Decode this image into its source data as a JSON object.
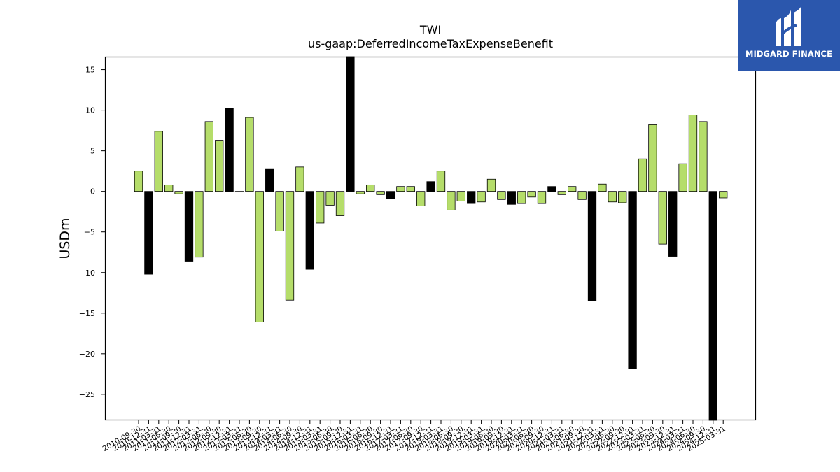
{
  "chart_data": {
    "type": "bar",
    "title": "TWI",
    "subtitle": "us-gaap:DeferredIncomeTaxExpenseBenefit",
    "xlabel": "",
    "ylabel": "USDm",
    "ylim": [
      -28.2,
      16.6
    ],
    "yticks": [
      15,
      10,
      5,
      0,
      -5,
      -10,
      -15,
      -20,
      -25
    ],
    "ytick_labels": [
      "15",
      "10",
      "5",
      "0",
      "−5",
      "−10",
      "−15",
      "−20",
      "−25"
    ],
    "grid": false,
    "legend": "none",
    "colors": {
      "positive_change": "#b5dd6a",
      "negative_change": "#000000",
      "edge": "#000000"
    },
    "categories": [
      "2010-09-30",
      "2010-12-31",
      "2011-03-31",
      "2011-06-30",
      "2011-09-30",
      "2011-12-31",
      "2012-03-31",
      "2012-06-30",
      "2012-09-30",
      "2012-12-31",
      "2013-03-31",
      "2013-06-30",
      "2013-09-30",
      "2013-12-31",
      "2014-03-31",
      "2014-06-30",
      "2014-09-30",
      "2014-12-31",
      "2015-03-31",
      "2015-06-30",
      "2015-09-30",
      "2015-12-31",
      "2016-03-31",
      "2016-06-30",
      "2016-09-30",
      "2016-12-31",
      "2017-03-31",
      "2017-06-30",
      "2017-09-30",
      "2017-12-31",
      "2018-03-31",
      "2018-06-30",
      "2018-09-30",
      "2018-12-31",
      "2019-03-31",
      "2019-06-30",
      "2019-09-30",
      "2019-12-31",
      "2020-03-31",
      "2020-06-30",
      "2020-09-30",
      "2020-12-31",
      "2021-03-31",
      "2021-06-30",
      "2021-09-30",
      "2021-12-31",
      "2022-03-31",
      "2022-06-30",
      "2022-09-30",
      "2022-12-31",
      "2023-03-31",
      "2023-06-30",
      "2023-09-30",
      "2023-12-31",
      "2024-03-31",
      "2024-06-30",
      "2024-09-30",
      "2024-12-31",
      "2025-03-31"
    ],
    "values": [
      2.5,
      -10.2,
      7.4,
      0.8,
      -0.3,
      -8.6,
      -8.1,
      8.6,
      6.3,
      10.2,
      0.0,
      9.1,
      -16.1,
      2.8,
      -4.9,
      -13.4,
      3.0,
      -9.6,
      -3.9,
      -1.7,
      -3.0,
      16.6,
      -0.3,
      0.8,
      -0.4,
      -0.9,
      0.6,
      0.6,
      -1.8,
      1.2,
      2.5,
      -2.3,
      -1.2,
      -1.5,
      -1.3,
      1.5,
      -1.0,
      -1.6,
      -1.5,
      -0.7,
      -1.5,
      0.6,
      -0.4,
      0.6,
      -1.0,
      -13.5,
      0.9,
      -1.3,
      -1.4,
      -21.8,
      4.0,
      8.2,
      -6.5,
      -8.0,
      3.4,
      9.4,
      8.6,
      -28.2,
      -0.8
    ],
    "bar_colors": [
      "#b5dd6a",
      "#000000",
      "#b5dd6a",
      "#b5dd6a",
      "#b5dd6a",
      "#000000",
      "#b5dd6a",
      "#b5dd6a",
      "#b5dd6a",
      "#000000",
      "#b5dd6a",
      "#b5dd6a",
      "#b5dd6a",
      "#000000",
      "#b5dd6a",
      "#b5dd6a",
      "#b5dd6a",
      "#000000",
      "#b5dd6a",
      "#b5dd6a",
      "#b5dd6a",
      "#000000",
      "#b5dd6a",
      "#b5dd6a",
      "#b5dd6a",
      "#000000",
      "#b5dd6a",
      "#b5dd6a",
      "#b5dd6a",
      "#000000",
      "#b5dd6a",
      "#b5dd6a",
      "#b5dd6a",
      "#000000",
      "#b5dd6a",
      "#b5dd6a",
      "#b5dd6a",
      "#000000",
      "#b5dd6a",
      "#b5dd6a",
      "#b5dd6a",
      "#000000",
      "#b5dd6a",
      "#b5dd6a",
      "#b5dd6a",
      "#000000",
      "#b5dd6a",
      "#b5dd6a",
      "#b5dd6a",
      "#000000",
      "#b5dd6a",
      "#b5dd6a",
      "#b5dd6a",
      "#000000",
      "#b5dd6a",
      "#b5dd6a",
      "#b5dd6a",
      "#000000",
      "#b5dd6a"
    ]
  },
  "logo": {
    "text": "MIDGARD FINANCE",
    "background": "#2b57ad",
    "icon": "midgard-m-logo-icon"
  }
}
